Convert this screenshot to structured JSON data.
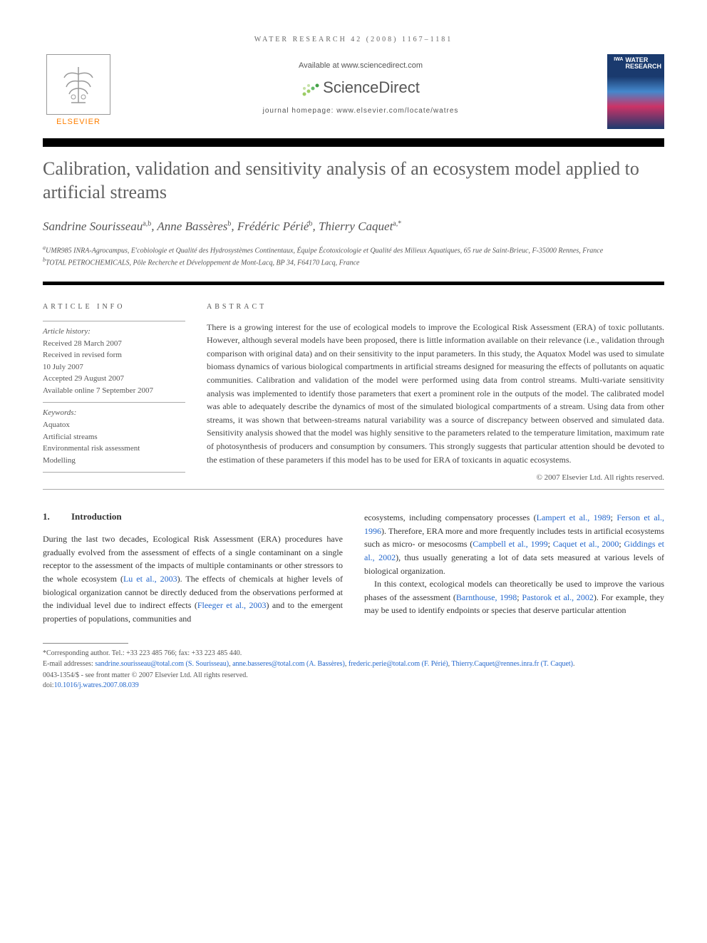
{
  "header": {
    "citation": "WATER RESEARCH 42 (2008) 1167–1181",
    "available_at": "Available at www.sciencedirect.com",
    "sciencedirect": "ScienceDirect",
    "journal_homepage": "journal homepage: www.elsevier.com/locate/watres",
    "elsevier": "ELSEVIER",
    "journal_cover_line1": "WATER",
    "journal_cover_line2": "RESEARCH",
    "journal_cover_iwa": "IWA"
  },
  "title": "Calibration, validation and sensitivity analysis of an ecosystem model applied to artificial streams",
  "authors_html": "Sandrine Sourisseau<sup>a,b</sup>, Anne Bassères<sup>b</sup>, Frédéric Périé<sup>b</sup>, Thierry Caquet<sup>a,*</sup>",
  "affiliations": {
    "a": "UMR985 INRA-Agrocampus, E'cobiologie et Qualité des Hydrosystèmes Continentaux, Équipe Écotoxicologie et Qualité des Milieux Aquatiques, 65 rue de Saint-Brieuc, F-35000 Rennes, France",
    "b": "TOTAL PETROCHEMICALS, Pôle Recherche et Développement de Mont-Lacq, BP 34, F64170 Lacq, France"
  },
  "article_info": {
    "heading": "ARTICLE INFO",
    "history_label": "Article history:",
    "received": "Received 28 March 2007",
    "revised1": "Received in revised form",
    "revised2": "10 July 2007",
    "accepted": "Accepted 29 August 2007",
    "online": "Available online 7 September 2007",
    "keywords_label": "Keywords:",
    "keywords": [
      "Aquatox",
      "Artificial streams",
      "Environmental risk assessment",
      "Modelling"
    ]
  },
  "abstract": {
    "heading": "ABSTRACT",
    "text": "There is a growing interest for the use of ecological models to improve the Ecological Risk Assessment (ERA) of toxic pollutants. However, although several models have been proposed, there is little information available on their relevance (i.e., validation through comparison with original data) and on their sensitivity to the input parameters. In this study, the Aquatox Model was used to simulate biomass dynamics of various biological compartments in artificial streams designed for measuring the effects of pollutants on aquatic communities. Calibration and validation of the model were performed using data from control streams. Multi-variate sensitivity analysis was implemented to identify those parameters that exert a prominent role in the outputs of the model. The calibrated model was able to adequately describe the dynamics of most of the simulated biological compartments of a stream. Using data from other streams, it was shown that between-streams natural variability was a source of discrepancy between observed and simulated data. Sensitivity analysis showed that the model was highly sensitive to the parameters related to the temperature limitation, maximum rate of photosynthesis of producers and consumption by consumers. This strongly suggests that particular attention should be devoted to the estimation of these parameters if this model has to be used for ERA of toxicants in aquatic ecosystems.",
    "copyright": "© 2007 Elsevier Ltd. All rights reserved."
  },
  "section": {
    "num": "1.",
    "title": "Introduction"
  },
  "body": {
    "col1_p1_a": "During the last two decades, Ecological Risk Assessment (ERA) procedures have gradually evolved from the assessment of effects of a single contaminant on a single receptor to the assessment of the impacts of multiple contaminants or other stressors to the whole ecosystem (",
    "col1_p1_cite1": "Lu et al., 2003",
    "col1_p1_b": "). The effects of chemicals at higher levels of biological organization cannot be directly deduced from the observations performed at the individual level due to indirect effects (",
    "col1_p1_cite2": "Fleeger et al., 2003",
    "col1_p1_c": ") and to the emergent properties of populations, communities and",
    "col2_p1_a": "ecosystems, including compensatory processes (",
    "col2_p1_cite1": "Lampert et al., 1989",
    "col2_p1_b": "; ",
    "col2_p1_cite2": "Ferson et al., 1996",
    "col2_p1_c": "). Therefore, ERA more and more frequently includes tests in artificial ecosystems such as micro- or mesocosms (",
    "col2_p1_cite3": "Campbell et al., 1999",
    "col2_p1_d": "; ",
    "col2_p1_cite4": "Caquet et al., 2000",
    "col2_p1_e": "; ",
    "col2_p1_cite5": "Giddings et al., 2002",
    "col2_p1_f": "), thus usually generating a lot of data sets measured at various levels of biological organization.",
    "col2_p2_a": "In this context, ecological models can theoretically be used to improve the various phases of the assessment (",
    "col2_p2_cite1": "Barnthouse, 1998",
    "col2_p2_b": "; ",
    "col2_p2_cite2": "Pastorok et al., 2002",
    "col2_p2_c": "). For example, they may be used to identify endpoints or species that deserve particular attention"
  },
  "footnote": {
    "corresponding": "*Corresponding author. Tel.: +33 223 485 766; fax: +33 223 485 440.",
    "emails_label": "E-mail addresses: ",
    "email1": "sandrine.sourisseau@total.com (S. Sourisseau)",
    "email2": "anne.basseres@total.com (A. Bassères)",
    "email3": "frederic.perie@total.com (F. Périé)",
    "email4": "Thierry.Caquet@rennes.inra.fr (T. Caquet)",
    "issn": "0043-1354/$ - see front matter © 2007 Elsevier Ltd. All rights reserved.",
    "doi_label": "doi:",
    "doi": "10.1016/j.watres.2007.08.039"
  },
  "colors": {
    "text": "#333333",
    "muted": "#555555",
    "link": "#2266cc",
    "elsevier_orange": "#ff7f00",
    "sd_green": "#8bc34a",
    "title_gray": "#606060"
  }
}
